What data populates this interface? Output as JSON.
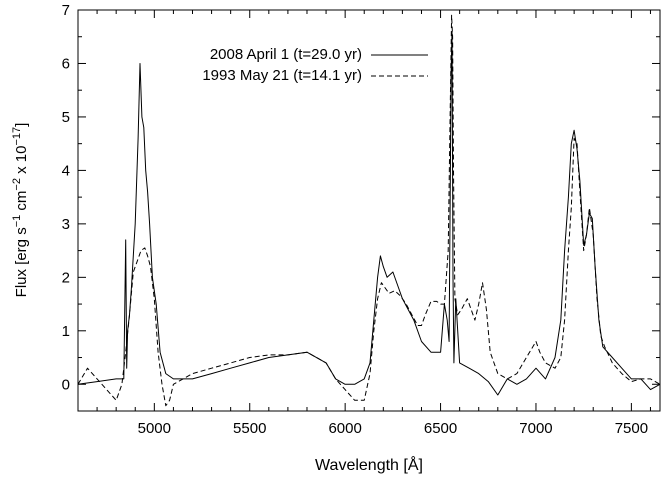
{
  "chart_data": {
    "type": "line",
    "xlabel": "Wavelength [Å]",
    "ylabel": {
      "base": "Flux [erg s",
      "sup1": "−1",
      "mid1": " cm",
      "sup2": "−2",
      "mid2": " x 10",
      "sup3": "−17",
      "end": "]"
    },
    "xlim": [
      4600,
      7650
    ],
    "ylim": [
      -0.5,
      7
    ],
    "xticks": [
      5000,
      5500,
      6000,
      6500,
      7000,
      7500
    ],
    "yticks": [
      0,
      1,
      2,
      3,
      4,
      5,
      6,
      7
    ],
    "legend_position": "top-center",
    "series": [
      {
        "name": "2008  April 1 (t=29.0 yr)",
        "style": "solid",
        "x": [
          4600,
          4700,
          4800,
          4840,
          4850,
          4855,
          4860,
          4870,
          4880,
          4900,
          4915,
          4925,
          4935,
          4945,
          4955,
          4965,
          4975,
          4990,
          5010,
          5030,
          5060,
          5100,
          5200,
          5300,
          5400,
          5500,
          5600,
          5700,
          5800,
          5900,
          5950,
          6000,
          6050,
          6100,
          6130,
          6150,
          6170,
          6185,
          6200,
          6220,
          6250,
          6280,
          6300,
          6330,
          6360,
          6400,
          6450,
          6500,
          6520,
          6535,
          6545,
          6555,
          6560,
          6565,
          6570,
          6580,
          6600,
          6650,
          6700,
          6750,
          6800,
          6850,
          6900,
          6950,
          7000,
          7050,
          7100,
          7130,
          7150,
          7170,
          7185,
          7200,
          7215,
          7230,
          7250,
          7265,
          7280,
          7295,
          7310,
          7330,
          7350,
          7400,
          7450,
          7500,
          7550,
          7600,
          7650
        ],
        "y": [
          0,
          0.05,
          0.1,
          0.1,
          2.7,
          0.3,
          1.0,
          1.3,
          1.8,
          3.0,
          4.6,
          6.0,
          5.0,
          4.8,
          4.0,
          3.6,
          3.0,
          2.0,
          1.5,
          0.6,
          0.2,
          0.1,
          0.1,
          0.2,
          0.3,
          0.4,
          0.5,
          0.55,
          0.6,
          0.4,
          0.1,
          0.0,
          0.0,
          0.1,
          0.4,
          1.2,
          2.0,
          2.4,
          2.2,
          2.0,
          2.1,
          1.8,
          1.6,
          1.4,
          1.2,
          0.8,
          0.6,
          0.6,
          1.5,
          1.2,
          0.8,
          5.8,
          6.6,
          2.0,
          0.4,
          1.6,
          0.4,
          0.3,
          0.2,
          0.05,
          -0.2,
          0.1,
          0.0,
          0.1,
          0.3,
          0.1,
          0.5,
          1.2,
          2.5,
          3.5,
          4.5,
          4.75,
          4.4,
          3.8,
          2.6,
          2.8,
          3.2,
          3.1,
          2.2,
          1.2,
          0.7,
          0.5,
          0.3,
          0.1,
          0.1,
          -0.1,
          0.0
        ]
      },
      {
        "name": "1993 May 21 (t=14.1 yr)",
        "style": "dashed",
        "x": [
          4600,
          4650,
          4700,
          4750,
          4800,
          4830,
          4850,
          4870,
          4890,
          4910,
          4930,
          4950,
          4965,
          4980,
          5000,
          5020,
          5040,
          5060,
          5080,
          5100,
          5200,
          5300,
          5400,
          5500,
          5600,
          5700,
          5800,
          5900,
          5950,
          6000,
          6050,
          6100,
          6130,
          6150,
          6170,
          6190,
          6210,
          6230,
          6260,
          6290,
          6320,
          6350,
          6380,
          6400,
          6420,
          6450,
          6480,
          6500,
          6520,
          6540,
          6550,
          6558,
          6563,
          6568,
          6575,
          6590,
          6610,
          6640,
          6680,
          6700,
          6720,
          6740,
          6760,
          6800,
          6850,
          6900,
          6950,
          7000,
          7020,
          7050,
          7100,
          7130,
          7150,
          7170,
          7185,
          7200,
          7215,
          7230,
          7250,
          7265,
          7280,
          7300,
          7320,
          7340,
          7360,
          7400,
          7450,
          7500,
          7550,
          7600,
          7650
        ],
        "y": [
          0,
          0.3,
          0.1,
          -0.1,
          -0.3,
          0.0,
          0.6,
          1.3,
          2.1,
          2.3,
          2.5,
          2.55,
          2.4,
          2.2,
          1.6,
          0.6,
          0.0,
          -0.4,
          -0.3,
          0.0,
          0.2,
          0.3,
          0.4,
          0.5,
          0.55,
          0.55,
          0.6,
          0.4,
          0.1,
          -0.1,
          -0.3,
          -0.3,
          0.2,
          1.0,
          1.6,
          1.9,
          1.8,
          1.7,
          1.75,
          1.65,
          1.5,
          1.3,
          1.1,
          1.1,
          1.3,
          1.55,
          1.55,
          1.5,
          1.5,
          2.5,
          5.0,
          6.9,
          6.5,
          4.0,
          1.6,
          1.3,
          1.4,
          1.6,
          1.2,
          1.5,
          1.9,
          1.4,
          0.6,
          0.2,
          0.1,
          0.2,
          0.5,
          0.8,
          0.6,
          0.4,
          0.3,
          0.5,
          1.2,
          2.5,
          3.3,
          4.6,
          4.5,
          3.6,
          2.5,
          2.8,
          3.3,
          2.8,
          1.6,
          0.9,
          0.7,
          0.4,
          0.2,
          0.05,
          0.1,
          0.1,
          0.0
        ]
      }
    ]
  }
}
